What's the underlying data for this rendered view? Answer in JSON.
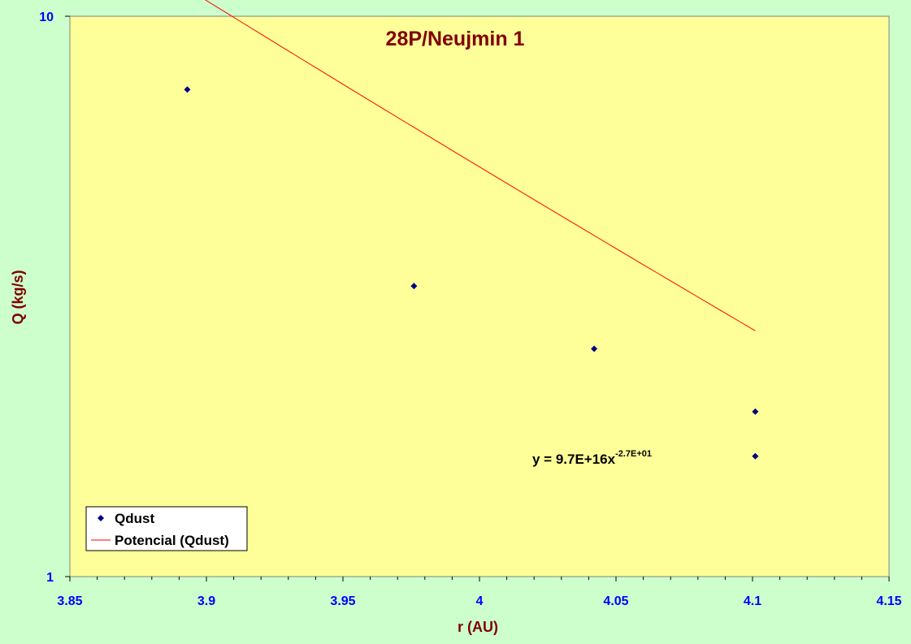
{
  "chart_data": {
    "type": "scatter",
    "title": "28P/Neujmin 1",
    "xlabel": "r (AU)",
    "ylabel": "Q (kg/s)",
    "xlim": [
      3.85,
      4.15
    ],
    "ylim": [
      1,
      10
    ],
    "y_scale": "log",
    "x_ticks": [
      3.85,
      3.9,
      3.95,
      4.0,
      4.05,
      4.1,
      4.15
    ],
    "x_tick_labels": [
      "3.85",
      "3.9",
      "3.95",
      "4",
      "4.05",
      "4.1",
      "4.15"
    ],
    "y_tick_labels": [
      "1",
      "10"
    ],
    "y_ticks": [
      1,
      10
    ],
    "grid": false,
    "legend_position": "bottom-left",
    "series": [
      {
        "name": "Qdust",
        "kind": "scatter",
        "marker": "diamond",
        "color": "#000080",
        "x": [
          3.893,
          3.976,
          4.042,
          4.101,
          4.101
        ],
        "y": [
          7.4,
          3.3,
          2.55,
          1.97,
          1.64
        ]
      },
      {
        "name": "Potencial (Qdust)",
        "kind": "trendline",
        "color": "#ff0000",
        "coefficient": 9.7e+16,
        "exponent": -27,
        "x_range": [
          3.893,
          4.101
        ]
      }
    ],
    "annotations": [
      {
        "text": "y = 9.7E+16x",
        "superscript": "-2.7E+01"
      }
    ]
  },
  "colors": {
    "page_background": "#ccffcc",
    "plot_background": "#ffff99",
    "axis_text": "#0000ff",
    "title_text": "#800000",
    "marker": "#000080",
    "trendline": "#ff0000"
  }
}
